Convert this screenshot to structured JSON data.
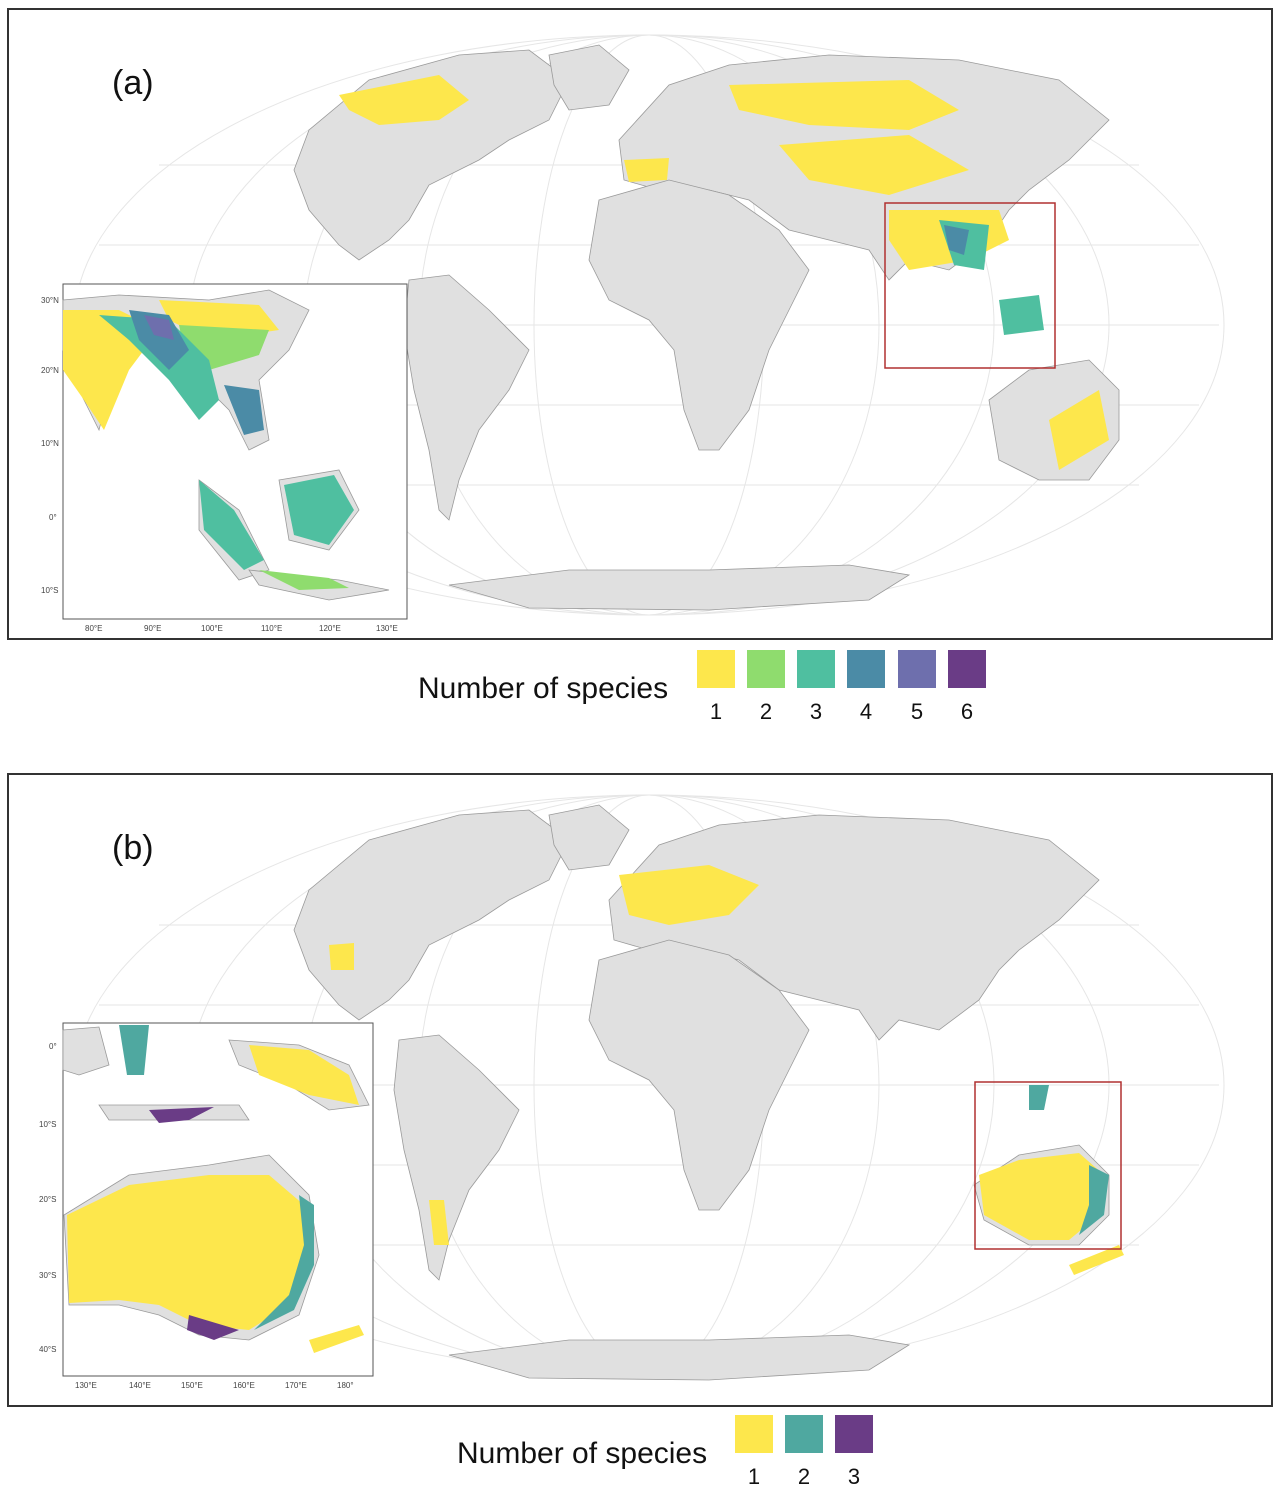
{
  "colors": {
    "land": "#e0e0e0",
    "coast": "#9a9a9a",
    "graticule": "#e6e6e6",
    "frame": "#333333",
    "highlight_box": "#b03030",
    "scale": [
      "#fde74c",
      "#8fdc6e",
      "#4fbfa0",
      "#4b8ba6",
      "#6e6fad",
      "#6a3c86"
    ]
  },
  "panel_a": {
    "label": "(a)",
    "inset_lat_ticks": [
      "30°N",
      "20°N",
      "10°N",
      "0°",
      "10°S"
    ],
    "inset_lon_ticks": [
      "80°E",
      "90°E",
      "100°E",
      "110°E",
      "120°E",
      "130°E"
    ],
    "legend": {
      "title": "Number of species",
      "items": [
        {
          "value": "1",
          "color": "#fde74c"
        },
        {
          "value": "2",
          "color": "#8fdc6e"
        },
        {
          "value": "3",
          "color": "#4fbfa0"
        },
        {
          "value": "4",
          "color": "#4b8ba6"
        },
        {
          "value": "5",
          "color": "#6e6fad"
        },
        {
          "value": "6",
          "color": "#6a3c86"
        }
      ]
    }
  },
  "panel_b": {
    "label": "(b)",
    "inset_lat_ticks": [
      "0°",
      "10°S",
      "20°S",
      "30°S",
      "40°S"
    ],
    "inset_lon_ticks": [
      "130°E",
      "140°E",
      "150°E",
      "160°E",
      "170°E",
      "180°"
    ],
    "legend": {
      "title": "Number of species",
      "items": [
        {
          "value": "1",
          "color": "#fde74c"
        },
        {
          "value": "2",
          "color": "#4fa8a0"
        },
        {
          "value": "3",
          "color": "#6a3c86"
        }
      ]
    }
  }
}
